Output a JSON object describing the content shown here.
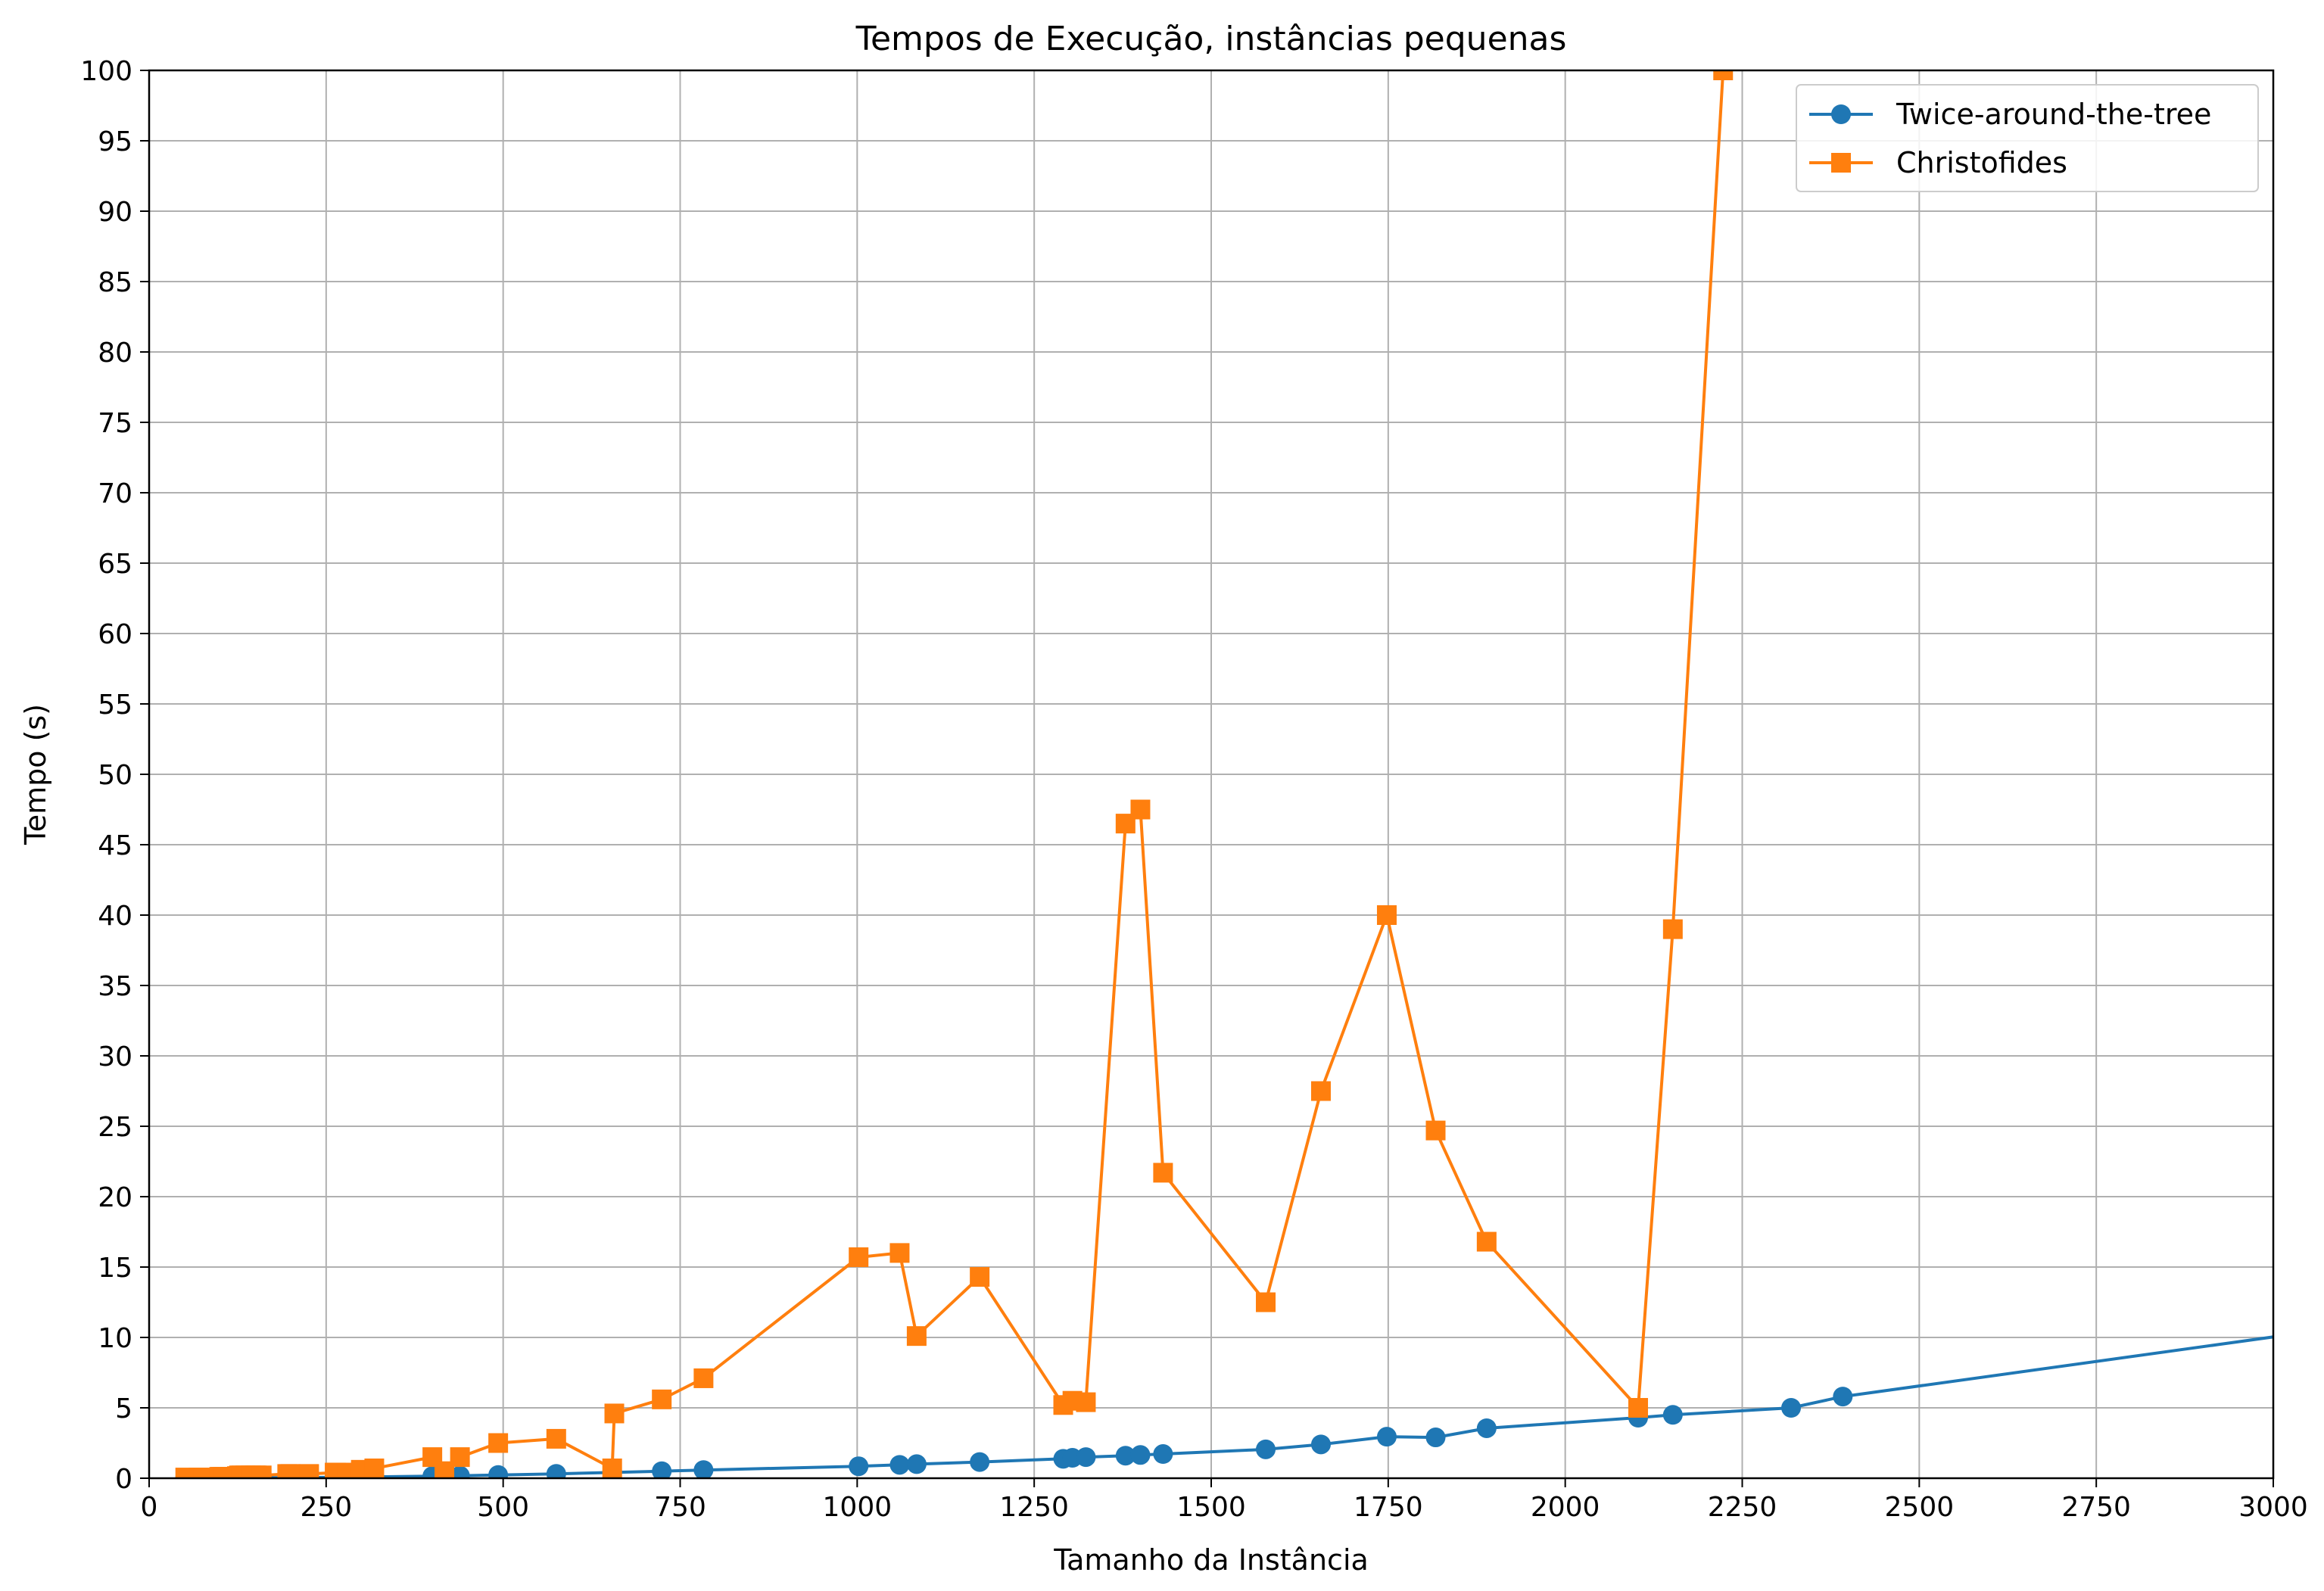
{
  "chart_data": {
    "type": "line",
    "title": "Tempos de Execução, instâncias pequenas",
    "xlabel": "Tamanho da Instância",
    "ylabel": "Tempo (s)",
    "xlim": [
      0,
      3000
    ],
    "ylim": [
      0,
      100
    ],
    "xticks": [
      0,
      250,
      500,
      750,
      1000,
      1250,
      1500,
      1750,
      2000,
      2250,
      2500,
      2750,
      3000
    ],
    "yticks": [
      0,
      5,
      10,
      15,
      20,
      25,
      30,
      35,
      40,
      45,
      50,
      55,
      60,
      65,
      70,
      75,
      80,
      85,
      90,
      95,
      100
    ],
    "grid": true,
    "legend_position": "top-right",
    "series": [
      {
        "name": "Twice-around-the-tree",
        "color": "#1f77b4",
        "marker": "circle",
        "x": [
          51,
          70,
          76,
          99,
          101,
          105,
          107,
          124,
          127,
          130,
          136,
          144,
          150,
          152,
          159,
          195,
          198,
          200,
          225,
          226,
          262,
          264,
          280,
          299,
          318,
          400,
          417,
          439,
          493,
          575,
          654,
          724,
          783,
          1002,
          1060,
          1084,
          1173,
          1291,
          1304,
          1323,
          1379,
          1400,
          1432,
          1577,
          1655,
          1748,
          1817,
          1889,
          2103,
          2152,
          2319,
          2392,
          3038
        ],
        "y": [
          0.01,
          0.01,
          0.01,
          0.02,
          0.02,
          0.02,
          0.02,
          0.02,
          0.02,
          0.02,
          0.02,
          0.03,
          0.03,
          0.03,
          0.03,
          0.04,
          0.04,
          0.04,
          0.05,
          0.05,
          0.07,
          0.07,
          0.08,
          0.09,
          0.1,
          0.15,
          0.17,
          0.18,
          0.23,
          0.31,
          0.41,
          0.5,
          0.58,
          0.85,
          0.95,
          1.0,
          1.15,
          1.38,
          1.45,
          1.5,
          1.6,
          1.65,
          1.72,
          2.05,
          2.4,
          2.95,
          2.9,
          3.55,
          4.3,
          4.5,
          5.0,
          5.8,
          10.3
        ]
      },
      {
        "name": "Christofides",
        "color": "#ff7f0e",
        "marker": "square",
        "x": [
          51,
          70,
          76,
          99,
          101,
          105,
          107,
          124,
          127,
          130,
          136,
          144,
          150,
          152,
          159,
          195,
          198,
          200,
          225,
          226,
          262,
          264,
          280,
          299,
          318,
          400,
          417,
          439,
          493,
          575,
          654,
          657,
          724,
          783,
          1002,
          1060,
          1084,
          1173,
          1291,
          1304,
          1323,
          1379,
          1400,
          1432,
          1577,
          1655,
          1748,
          1817,
          1889,
          2103,
          2152,
          2223
        ],
        "y": [
          0.05,
          0.05,
          0.05,
          0.1,
          0.1,
          0.1,
          0.1,
          0.15,
          0.2,
          0.2,
          0.2,
          0.2,
          0.2,
          0.2,
          0.2,
          0.3,
          0.3,
          0.3,
          0.3,
          0.3,
          0.4,
          0.4,
          0.4,
          0.6,
          0.7,
          1.5,
          0.5,
          1.5,
          2.5,
          2.8,
          0.7,
          4.6,
          5.6,
          7.1,
          15.7,
          16.0,
          10.1,
          14.3,
          5.2,
          5.5,
          5.4,
          46.5,
          47.5,
          21.7,
          12.5,
          27.5,
          40.0,
          24.7,
          16.8,
          5.0,
          39.0,
          100.0
        ]
      }
    ]
  }
}
